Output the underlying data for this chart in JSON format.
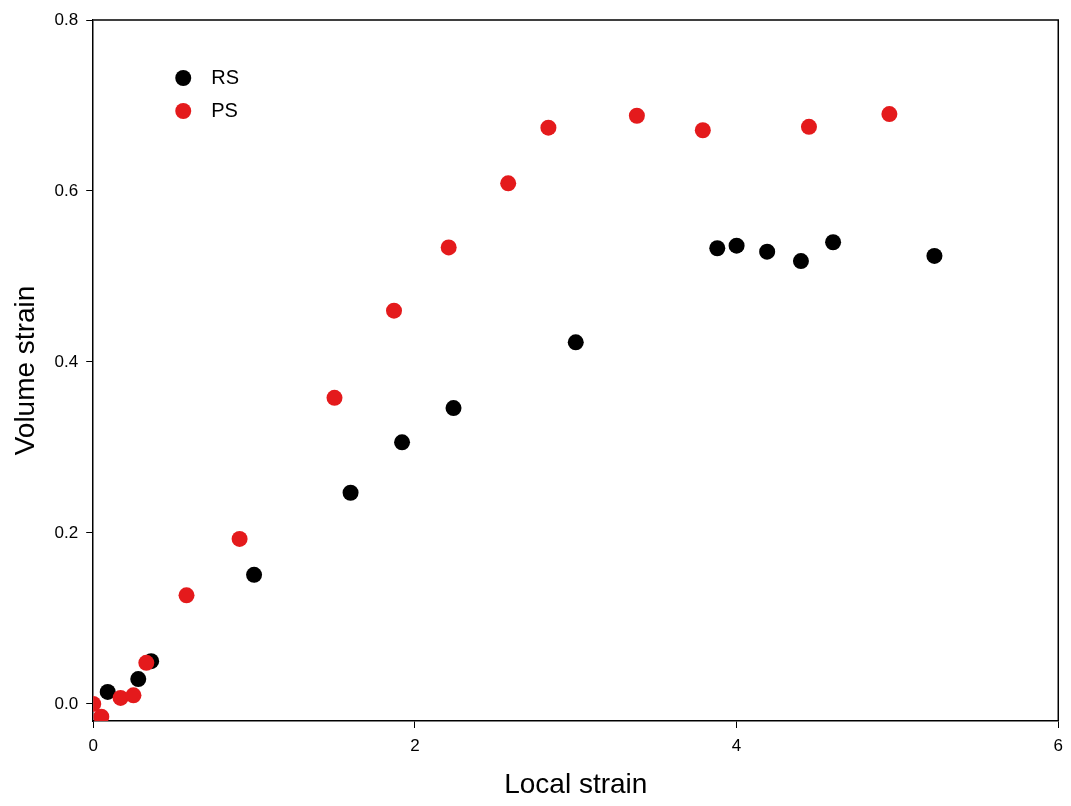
{
  "chart_data": {
    "type": "scatter",
    "xlabel": "Local strain",
    "ylabel": "Volume strain",
    "xlim": [
      0,
      6
    ],
    "xticks": [
      0,
      2,
      4,
      6
    ],
    "ylim": [
      -0.02,
      0.8
    ],
    "yticks": [
      {
        "value": 0,
        "label": "0.0"
      },
      {
        "value": 0.2,
        "label": "0.2"
      },
      {
        "value": 0.4,
        "label": "0.4"
      },
      {
        "value": 0.6,
        "label": "0.6"
      },
      {
        "value": 0.8,
        "label": "0.8"
      }
    ],
    "legend": "top left",
    "marker": "circle",
    "grid": false,
    "series": [
      {
        "name": "RS",
        "color": "#000000",
        "x": [
          0.09,
          0.28,
          0.36,
          1.0,
          1.6,
          1.92,
          2.24,
          3.0,
          3.88,
          4.0,
          4.19,
          4.4,
          4.6,
          5.23
        ],
        "values": [
          0.014,
          0.029,
          0.05,
          0.151,
          0.247,
          0.306,
          0.346,
          0.423,
          0.533,
          0.536,
          0.529,
          0.518,
          0.54,
          0.524
        ]
      },
      {
        "name": "PS",
        "color": "#e41a1c",
        "x": [
          0,
          0.05,
          0.17,
          0.25,
          0.33,
          0.58,
          0.91,
          1.5,
          1.87,
          2.21,
          2.58,
          2.83,
          3.38,
          3.79,
          4.45,
          4.95
        ],
        "values": [
          0.0,
          -0.015,
          0.007,
          0.01,
          0.048,
          0.127,
          0.193,
          0.358,
          0.46,
          0.534,
          0.609,
          0.674,
          0.688,
          0.671,
          0.675,
          0.69
        ]
      }
    ]
  }
}
